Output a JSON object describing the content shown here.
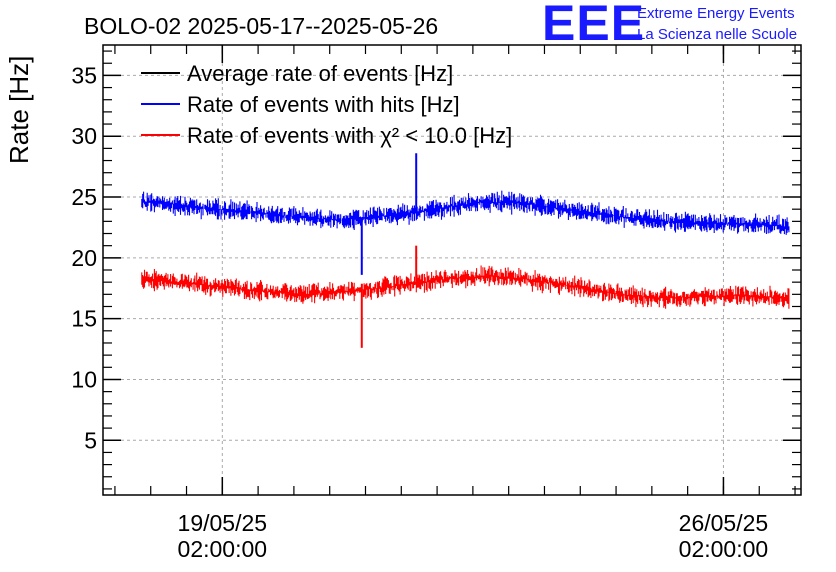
{
  "header": {
    "title": "BOLO-02 2025-05-17--2025-05-26",
    "logo_mark": "EEE",
    "logo_line1": "Extreme Energy Events",
    "logo_line2": "La Scienza nelle Scuole"
  },
  "chart_data": {
    "type": "line",
    "title": "BOLO-02 2025-05-17--2025-05-26",
    "ylabel": "Rate [Hz]",
    "xlabel": "",
    "ylim": [
      0.5,
      37.5
    ],
    "xlim": [
      "2025-05-17 10:00:00",
      "2025-05-27 04:00:00"
    ],
    "grid": true,
    "legend_position": "top-left",
    "yticks": [
      "5",
      "10",
      "15",
      "20",
      "25",
      "30",
      "35"
    ],
    "xticks": [
      {
        "date": "19/05/25",
        "time": "02:00:00",
        "at": "2025-05-19 02:00:00"
      },
      {
        "date": "26/05/25",
        "time": "02:00:00",
        "at": "2025-05-26 02:00:00"
      }
    ],
    "series": [
      {
        "name": "Average rate of events [Hz]",
        "color": "#000000",
        "x": [],
        "y": []
      },
      {
        "name": "Rate of events with hits [Hz]",
        "color": "#0000ff",
        "x": [
          "2025-05-17 23:00",
          "2025-05-18 06:00",
          "2025-05-18 18:00",
          "2025-05-19 06:00",
          "2025-05-19 18:00",
          "2025-05-20 06:00",
          "2025-05-20 18:00",
          "2025-05-21 06:00",
          "2025-05-21 18:00",
          "2025-05-22 06:00",
          "2025-05-22 18:00",
          "2025-05-23 06:00",
          "2025-05-23 18:00",
          "2025-05-24 06:00",
          "2025-05-24 18:00",
          "2025-05-25 06:00",
          "2025-05-25 18:00",
          "2025-05-26 06:00",
          "2025-05-26 18:00",
          "2025-05-27 00:00"
        ],
        "y": [
          24.6,
          24.5,
          24.1,
          23.9,
          23.6,
          23.3,
          23.1,
          23.4,
          23.7,
          24.2,
          24.6,
          24.5,
          24.1,
          23.7,
          23.3,
          23.0,
          22.9,
          22.8,
          22.7,
          22.5
        ]
      },
      {
        "name": "Rate of events with χ² < 10.0 [Hz]",
        "color": "#ff0000",
        "x": [
          "2025-05-17 23:00",
          "2025-05-18 06:00",
          "2025-05-18 18:00",
          "2025-05-19 06:00",
          "2025-05-19 18:00",
          "2025-05-20 06:00",
          "2025-05-20 18:00",
          "2025-05-21 06:00",
          "2025-05-21 18:00",
          "2025-05-22 06:00",
          "2025-05-22 18:00",
          "2025-05-23 06:00",
          "2025-05-23 18:00",
          "2025-05-24 06:00",
          "2025-05-24 18:00",
          "2025-05-25 06:00",
          "2025-05-25 18:00",
          "2025-05-26 06:00",
          "2025-05-26 18:00",
          "2025-05-27 00:00"
        ],
        "y": [
          18.2,
          18.1,
          17.8,
          17.5,
          17.2,
          17.0,
          17.2,
          17.5,
          17.9,
          18.3,
          18.5,
          18.3,
          17.9,
          17.4,
          16.9,
          16.7,
          16.8,
          16.9,
          16.8,
          16.6
        ]
      }
    ],
    "annotations": [
      {
        "series": 1,
        "x": "2025-05-21 00:45",
        "y": 18.6,
        "note": "dip"
      },
      {
        "series": 1,
        "x": "2025-05-21 19:00",
        "y": 28.6,
        "note": "spike"
      },
      {
        "series": 2,
        "x": "2025-05-21 00:45",
        "y": 12.6,
        "note": "dip"
      },
      {
        "series": 2,
        "x": "2025-05-21 19:00",
        "y": 21.0,
        "note": "spike"
      }
    ]
  }
}
